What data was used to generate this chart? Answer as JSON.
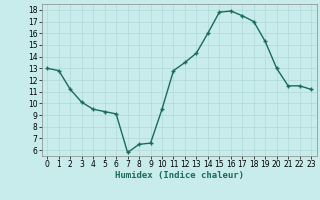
{
  "x": [
    0,
    1,
    2,
    3,
    4,
    5,
    6,
    7,
    8,
    9,
    10,
    11,
    12,
    13,
    14,
    15,
    16,
    17,
    18,
    19,
    20,
    21,
    22,
    23
  ],
  "y": [
    13.0,
    12.8,
    11.2,
    10.1,
    9.5,
    9.3,
    9.1,
    5.8,
    6.5,
    6.6,
    9.5,
    12.8,
    13.5,
    14.3,
    16.0,
    17.8,
    17.9,
    17.5,
    17.0,
    15.3,
    13.0,
    11.5,
    11.5,
    11.2
  ],
  "line_color": "#1a6b5a",
  "marker_color": "#1a6b5a",
  "bg_color": "#c8ecec",
  "grid_color": "#b0d8d8",
  "xlabel": "Humidex (Indice chaleur)",
  "ylim": [
    5.5,
    18.5
  ],
  "xlim": [
    -0.5,
    23.5
  ],
  "yticks": [
    6,
    7,
    8,
    9,
    10,
    11,
    12,
    13,
    14,
    15,
    16,
    17,
    18
  ],
  "xticks": [
    0,
    1,
    2,
    3,
    4,
    5,
    6,
    7,
    8,
    9,
    10,
    11,
    12,
    13,
    14,
    15,
    16,
    17,
    18,
    19,
    20,
    21,
    22,
    23
  ],
  "xtick_labels": [
    "0",
    "1",
    "2",
    "3",
    "4",
    "5",
    "6",
    "7",
    "8",
    "9",
    "10",
    "11",
    "12",
    "13",
    "14",
    "15",
    "16",
    "17",
    "18",
    "19",
    "20",
    "21",
    "22",
    "23"
  ],
  "linewidth": 1.0,
  "markersize": 2.5,
  "tick_fontsize": 5.5,
  "xlabel_fontsize": 6.5
}
